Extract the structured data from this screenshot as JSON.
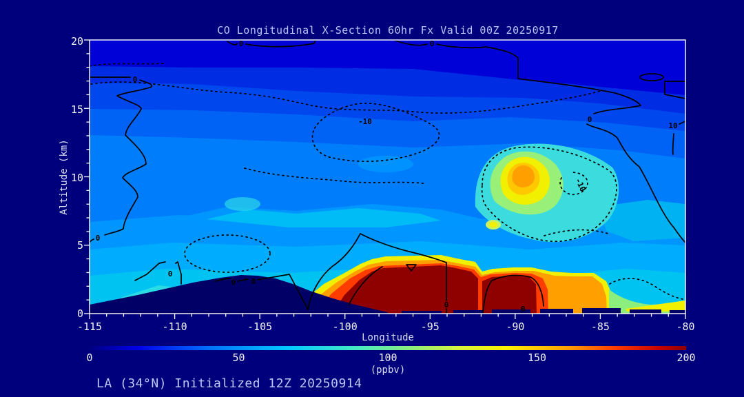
{
  "window": {
    "app": "CO cross-section forecast plot"
  },
  "chart_data": {
    "type": "heatmap",
    "subtype": "filled-contour-cross-section",
    "title": "CO Longitudinal X-Section 60hr  Fx Valid 00Z 20250917",
    "footer": "LA (34°N) Initialized 12Z 20250914",
    "xlabel": "Longitude",
    "ylabel": "Altitude (km)",
    "x_range": [
      -115,
      -80
    ],
    "y_range": [
      0,
      20
    ],
    "x_ticks": [
      "-115",
      "-110",
      "-105",
      "-100",
      "-95",
      "-90",
      "-85",
      "-80"
    ],
    "y_ticks": [
      "0",
      "5",
      "10",
      "15",
      "20"
    ],
    "x_minor_step_deg": 1,
    "y_minor_step_km": 1,
    "colorbar": {
      "label": "(ppbv)",
      "min": 0,
      "max": 200,
      "ticks": [
        "0",
        "50",
        "100",
        "150",
        "200"
      ],
      "palette": [
        "#000080",
        "#0000E8",
        "#0070FF",
        "#00C8FF",
        "#40E8C8",
        "#8CEE7C",
        "#D8F23C",
        "#FFF000",
        "#FFA000",
        "#FF3C00",
        "#C80000",
        "#8F0000"
      ]
    },
    "contour_labels": {
      "zero": "0",
      "ten": "10",
      "minus_ten": "-10"
    },
    "features": [
      {
        "name": "stratospheric low-CO band",
        "approx": "17-20 km, all longitudes",
        "value_ppbv": "20-40",
        "color": "#0001D6"
      },
      {
        "name": "mid-troposphere background",
        "approx": "5-15 km",
        "value_ppbv": "50-70",
        "color": "#007DFA"
      },
      {
        "name": "elevated CO plume aloft",
        "approx": "8-12 km near -91 to -88 lon",
        "value_ppbv": "120-160 peak",
        "color": "#FFA000"
      },
      {
        "name": "boundary-layer CO maximum",
        "approx": "0-3.5 km from -101 to -85 lon",
        "value_ppbv": ">=200 core",
        "color": "#8F0000"
      },
      {
        "name": "secondary surface maximum",
        "approx": "0-2 km near -85 to -82 lon",
        "value_ppbv": "140-170",
        "color": "#FFA000"
      },
      {
        "name": "terrain silhouette",
        "approx": "surface, -115 to -97 lon, peak ~3 km",
        "color": "#000066"
      },
      {
        "name": "line contours",
        "description": "solid 0 and 10, dotted -10 (difference field)"
      }
    ]
  }
}
